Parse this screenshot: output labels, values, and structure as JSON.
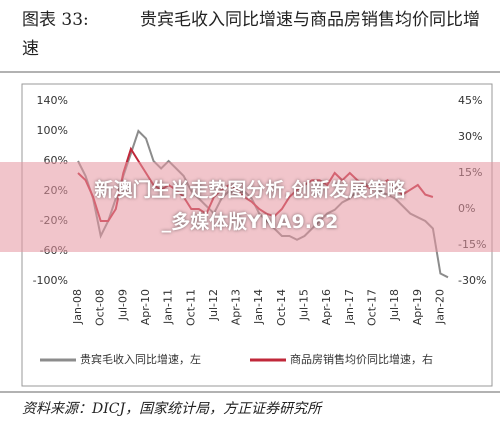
{
  "chart_data": {
    "type": "line",
    "figure_label": "图表 33:",
    "title": "贵宾毛收入同比增速与商品房销售均价同比增速",
    "source": "资料来源：DICJ，国家统计局，方正证券研究所",
    "categories": [
      "Jan-08",
      null,
      null,
      "Oct-08",
      null,
      null,
      "Jul-09",
      null,
      null,
      "Apr-10",
      null,
      null,
      "Jan-11",
      null,
      null,
      "Oct-11",
      null,
      null,
      "Jul-12",
      null,
      null,
      "Apr-13",
      null,
      null,
      "Jan-14",
      null,
      null,
      "Oct-14",
      null,
      null,
      "Jul-15",
      null,
      null,
      "Apr-16",
      null,
      null,
      "Jan-17",
      null,
      null,
      "Oct-17",
      null,
      null,
      "Jul-18",
      null,
      null,
      "Apr-19",
      null,
      null,
      "Jan-20",
      null
    ],
    "ylim": [
      -100,
      140
    ],
    "yticks": [
      {
        "value": 140,
        "label": "140%"
      },
      {
        "value": 100,
        "label": "100%"
      },
      {
        "value": 60,
        "label": "60%"
      },
      {
        "value": 20,
        "label": "20%"
      },
      {
        "value": -20,
        "label": "-20%"
      },
      {
        "value": -60,
        "label": "-60%"
      },
      {
        "value": -100,
        "label": "-100%"
      }
    ],
    "y2lim": [
      -30,
      45
    ],
    "y2ticks": [
      {
        "value": 45,
        "label": "45%"
      },
      {
        "value": 30,
        "label": "30%"
      },
      {
        "value": 15,
        "label": "15%"
      },
      {
        "value": 0,
        "label": "0%"
      },
      {
        "value": -15,
        "label": "-15%"
      },
      {
        "value": -30,
        "label": "-30%"
      }
    ],
    "series": [
      {
        "name": "贵宾毛收入同比增速，左",
        "color": "#8c8c8c",
        "axis": "y",
        "values": [
          60,
          40,
          10,
          -40,
          -20,
          10,
          40,
          70,
          100,
          90,
          60,
          50,
          60,
          50,
          40,
          20,
          10,
          0,
          -10,
          10,
          20,
          15,
          20,
          10,
          -10,
          -20,
          -30,
          -40,
          -40,
          -45,
          -40,
          -30,
          -20,
          -10,
          -5,
          5,
          10,
          20,
          30,
          25,
          20,
          15,
          10,
          0,
          -10,
          -15,
          -20,
          -30,
          -90,
          -95
        ]
      },
      {
        "name": "商品房销售均价同比增速，右",
        "color": "#c0283a",
        "axis": "y2",
        "values": [
          15,
          12,
          5,
          -5,
          -5,
          0,
          15,
          25,
          20,
          15,
          10,
          8,
          10,
          8,
          5,
          0,
          0,
          -2,
          5,
          8,
          10,
          8,
          5,
          3,
          0,
          -2,
          -3,
          0,
          5,
          8,
          10,
          12,
          12,
          10,
          15,
          12,
          15,
          12,
          10,
          8,
          10,
          12,
          8,
          6,
          8,
          10,
          6,
          5,
          null,
          null
        ]
      }
    ]
  },
  "overlay": {
    "lines": [
      "新澳门生肖走势图分析,创新发展策略",
      "_多媒体版YNA9.62"
    ]
  }
}
